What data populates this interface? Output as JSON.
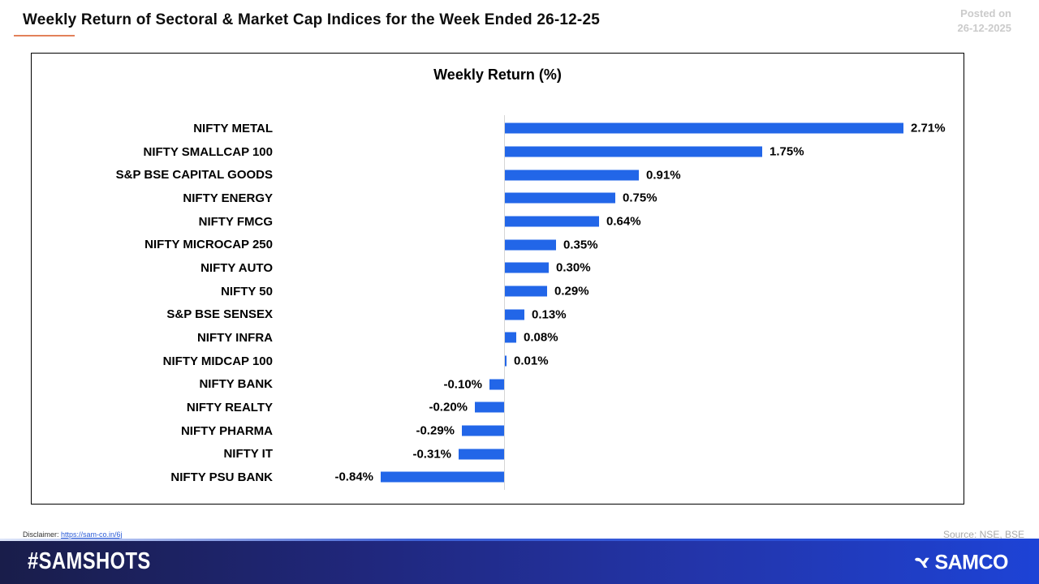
{
  "header": {
    "title": "Weekly Return of Sectoral & Market Cap Indices for the Week Ended 26-12-25",
    "posted_on_line1": "Posted on",
    "posted_on_line2": "26-12-2025"
  },
  "chart_data": {
    "type": "bar",
    "orientation": "horizontal",
    "title": "Weekly Return (%)",
    "categories": [
      "NIFTY METAL",
      "NIFTY SMALLCAP 100",
      "S&P BSE CAPITAL GOODS",
      "NIFTY ENERGY",
      "NIFTY FMCG",
      "NIFTY MICROCAP 250",
      "NIFTY AUTO",
      "NIFTY 50",
      "S&P BSE SENSEX",
      "NIFTY INFRA",
      "NIFTY MIDCAP 100",
      "NIFTY BANK",
      "NIFTY REALTY",
      "NIFTY PHARMA",
      "NIFTY IT",
      "NIFTY PSU BANK"
    ],
    "values": [
      2.71,
      1.75,
      0.91,
      0.75,
      0.64,
      0.35,
      0.3,
      0.29,
      0.13,
      0.08,
      0.01,
      -0.1,
      -0.2,
      -0.29,
      -0.31,
      -0.84
    ],
    "labels": [
      "2.71%",
      "1.75%",
      "0.91%",
      "0.75%",
      "0.64%",
      "0.35%",
      "0.30%",
      "0.29%",
      "0.13%",
      "0.08%",
      "0.01%",
      "-0.10%",
      "-0.20%",
      "-0.29%",
      "-0.31%",
      "-0.84%"
    ],
    "bar_color": "#2266e8",
    "axis_color": "#d6d6d6",
    "xlim": [
      -1.4,
      3.1
    ],
    "grid": false,
    "legend": false,
    "data_labels": true
  },
  "bottom": {
    "disclaimer_label": "Disclaimer:",
    "disclaimer_link": "https://sam-co.in/6j",
    "source": "Source: NSE, BSE"
  },
  "footer": {
    "hashtag": "#SAMSHOTS",
    "brand": "SAMCO",
    "brand_mark_icon": "samco-logo-mark",
    "gradient_left": "#191d4a",
    "gradient_right": "#1d43d6"
  }
}
